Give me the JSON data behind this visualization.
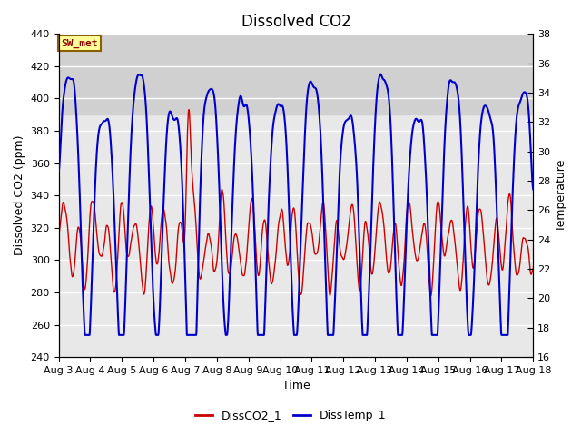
{
  "title": "Dissolved CO2",
  "xlabel": "Time",
  "ylabel_left": "Dissolved CO2 (ppm)",
  "ylabel_right": "Temperature",
  "ylim_left": [
    240,
    440
  ],
  "ylim_right": [
    16,
    38
  ],
  "yticks_left": [
    240,
    260,
    280,
    300,
    320,
    340,
    360,
    380,
    400,
    420,
    440
  ],
  "yticks_right": [
    16,
    18,
    20,
    22,
    24,
    26,
    28,
    30,
    32,
    34,
    36,
    38
  ],
  "xtick_labels": [
    "Aug 3",
    "Aug 4",
    "Aug 5",
    "Aug 6",
    "Aug 7",
    "Aug 8",
    "Aug 9",
    "Aug 10",
    "Aug 11",
    "Aug 12",
    "Aug 13",
    "Aug 14",
    "Aug 15",
    "Aug 16",
    "Aug 17",
    "Aug 18"
  ],
  "co2_color": "#CC0000",
  "temp_color": "#0000CC",
  "legend_co2": "DissCO2_1",
  "legend_temp": "DissTemp_1",
  "annotation_text": "SW_met",
  "annotation_color": "#8B0000",
  "annotation_bg": "#FFFF99",
  "annotation_border": "#8B6000",
  "plot_bg": "#E8E8E8",
  "shaded_top_color": "#D0D0D0",
  "grid_color": "#FFFFFF",
  "title_fontsize": 12,
  "axis_fontsize": 9,
  "tick_fontsize": 8
}
